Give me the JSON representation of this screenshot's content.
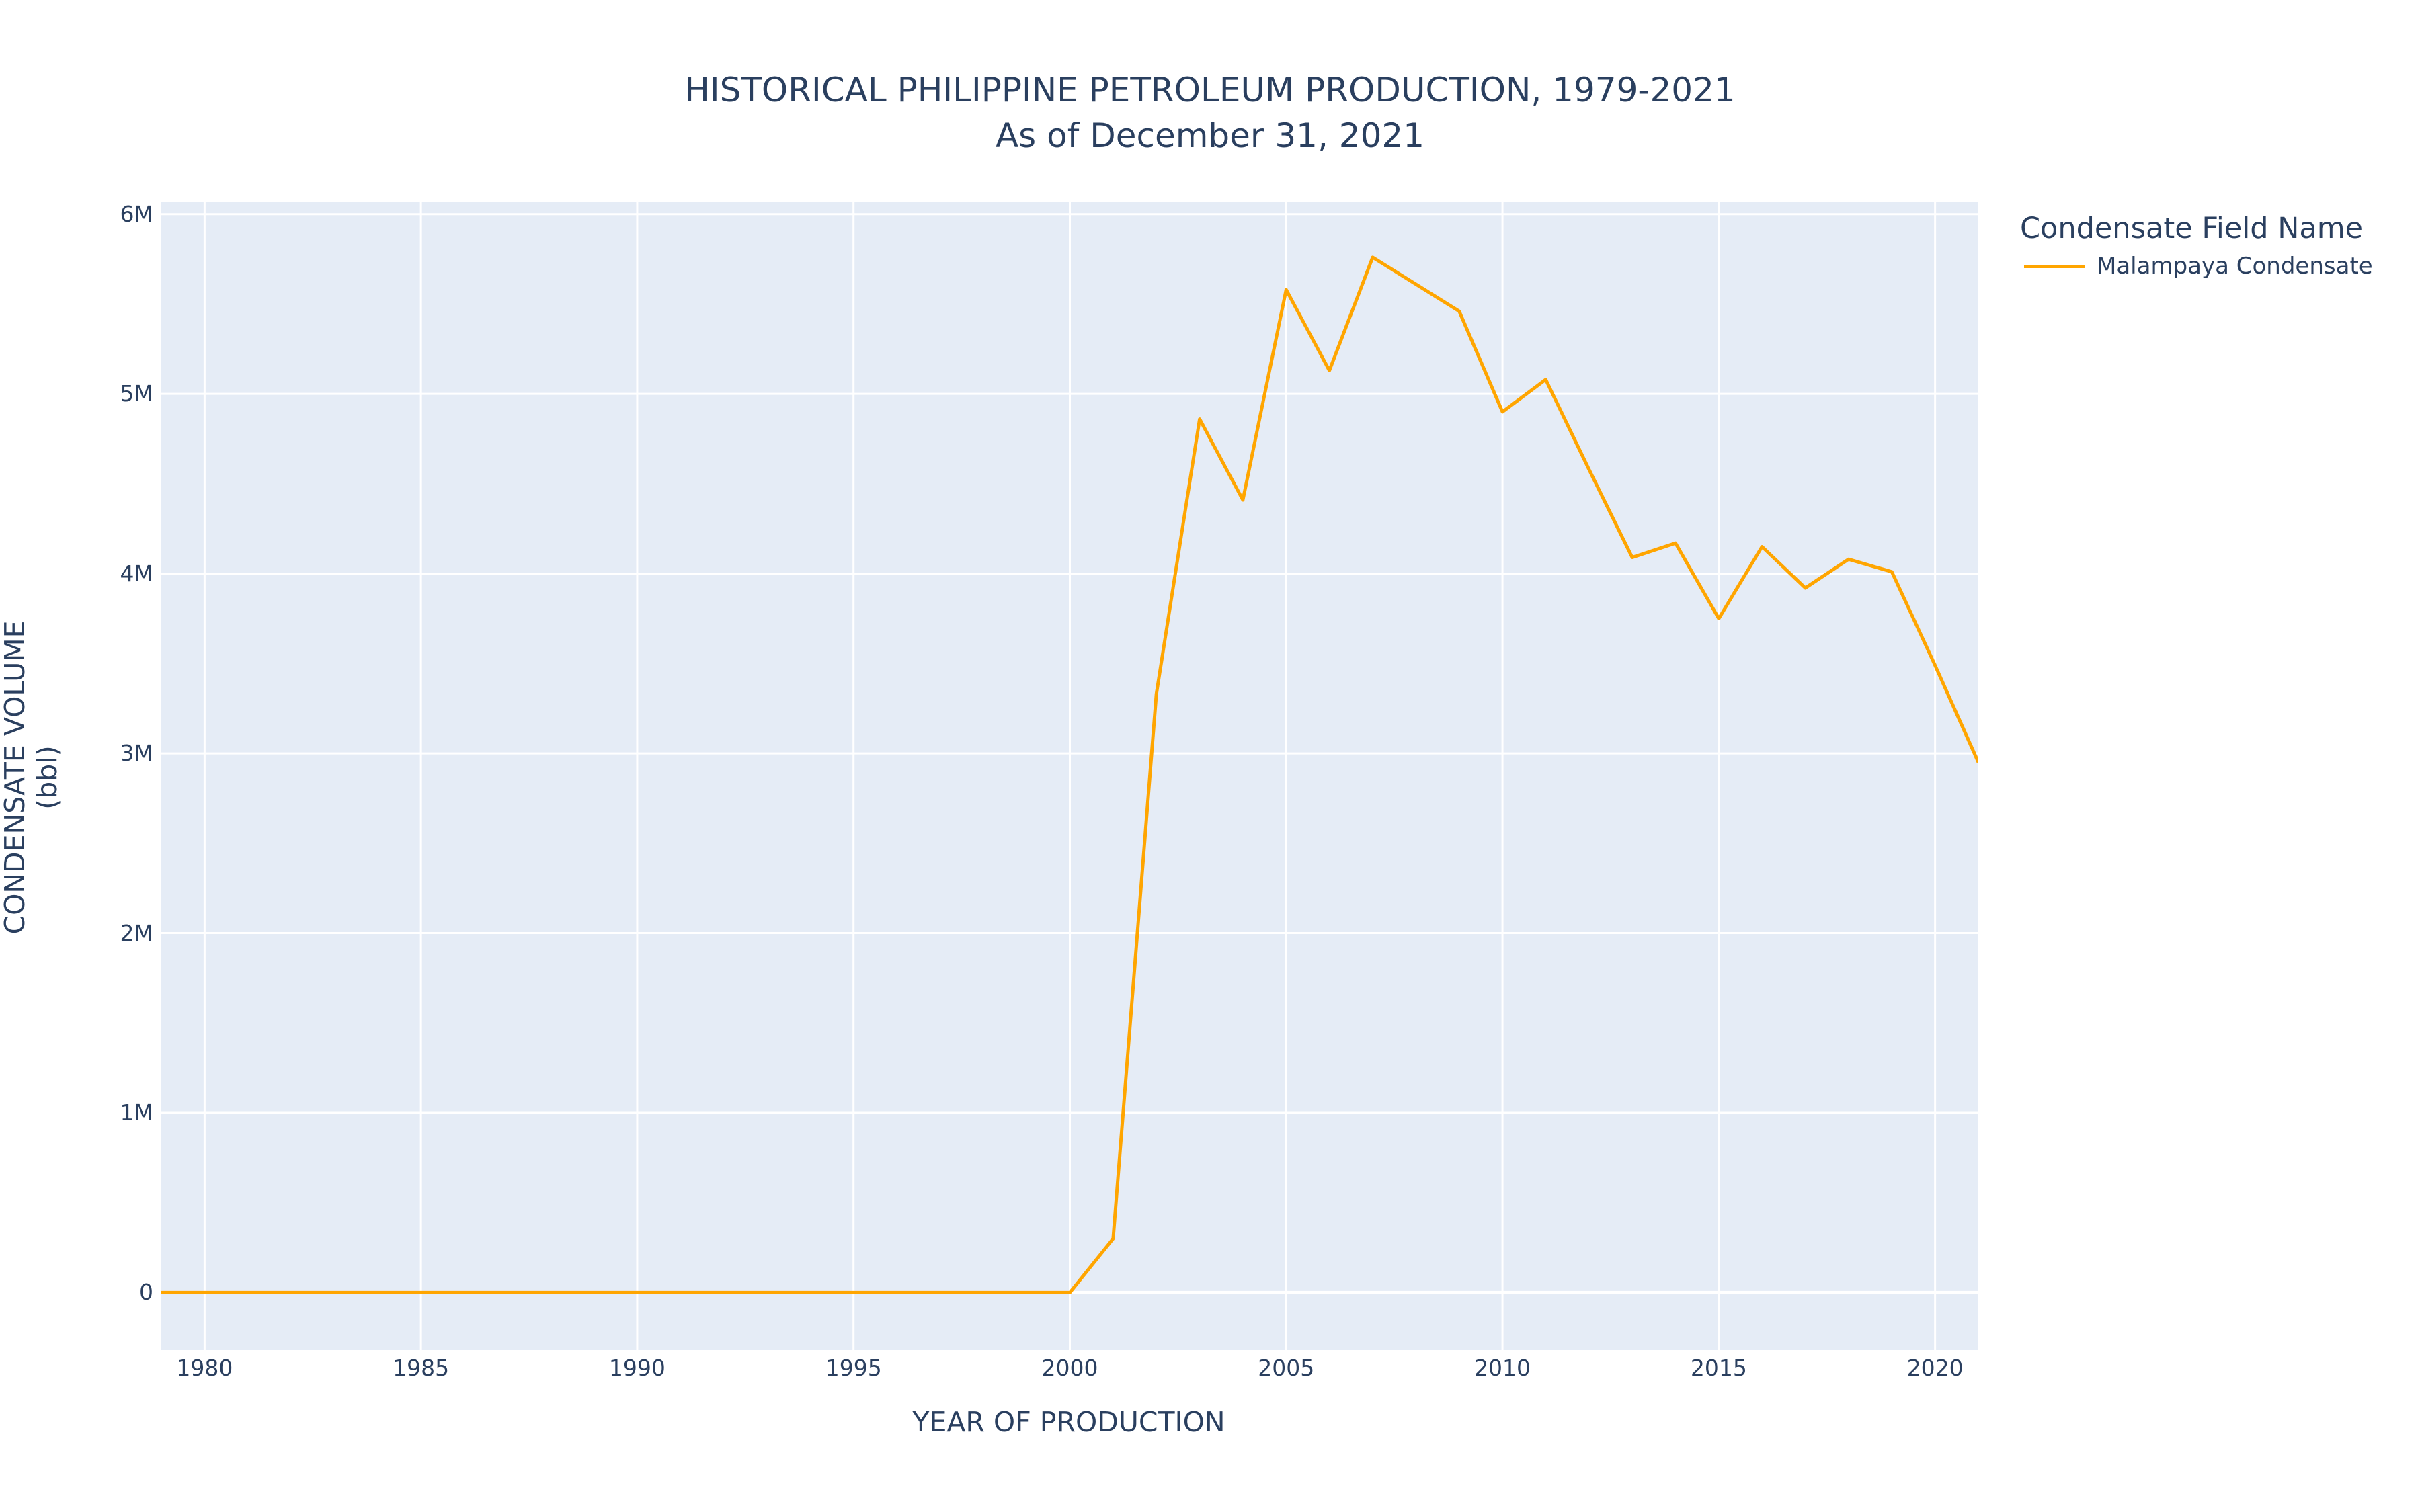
{
  "title": {
    "line1": "HISTORICAL PHILIPPINE PETROLEUM PRODUCTION, 1979-2021",
    "line2": "As of December 31, 2021"
  },
  "axes": {
    "x_title": "YEAR OF PRODUCTION",
    "y_title_line1": "CONDENSATE VOLUME",
    "y_title_line2": "(bbl)",
    "x_ticks": [
      "1980",
      "1985",
      "1990",
      "1995",
      "2000",
      "2005",
      "2010",
      "2015",
      "2020"
    ],
    "y_ticks": [
      "0",
      "1M",
      "2M",
      "3M",
      "4M",
      "5M",
      "6M"
    ]
  },
  "legend": {
    "title": "Condensate Field Name",
    "items": [
      {
        "label": "Malampaya Condensate",
        "color": "#FFA500"
      }
    ]
  },
  "colors": {
    "plot_bg": "#e5ecf6",
    "grid": "#ffffff",
    "text": "#2a3f5f",
    "series": "#FFA500"
  },
  "chart_data": {
    "type": "line",
    "title": "HISTORICAL PHILIPPINE PETROLEUM PRODUCTION, 1979-2021",
    "subtitle": "As of December 31, 2021",
    "xlabel": "YEAR OF PRODUCTION",
    "ylabel": "CONDENSATE VOLUME (bbl)",
    "xlim": [
      1979,
      2021
    ],
    "ylim": [
      -320000,
      6070000
    ],
    "grid": true,
    "legend_position": "right",
    "legend_title": "Condensate Field Name",
    "x": [
      1979,
      1980,
      1981,
      1982,
      1983,
      1984,
      1985,
      1986,
      1987,
      1988,
      1989,
      1990,
      1991,
      1992,
      1993,
      1994,
      1995,
      1996,
      1997,
      1998,
      1999,
      2000,
      2001,
      2002,
      2003,
      2004,
      2005,
      2006,
      2007,
      2008,
      2009,
      2010,
      2011,
      2012,
      2013,
      2014,
      2015,
      2016,
      2017,
      2018,
      2019,
      2020,
      2021
    ],
    "series": [
      {
        "name": "Malampaya Condensate",
        "color": "#FFA500",
        "values": [
          0,
          0,
          0,
          0,
          0,
          0,
          0,
          0,
          0,
          0,
          0,
          0,
          0,
          0,
          0,
          0,
          0,
          0,
          0,
          0,
          0,
          0,
          300000,
          3330000,
          4860000,
          4410000,
          5580000,
          5130000,
          5760000,
          5610000,
          5460000,
          4900000,
          5080000,
          4580000,
          4090000,
          4170000,
          3750000,
          4150000,
          3920000,
          4080000,
          4010000,
          3490000,
          2950000
        ]
      }
    ]
  }
}
